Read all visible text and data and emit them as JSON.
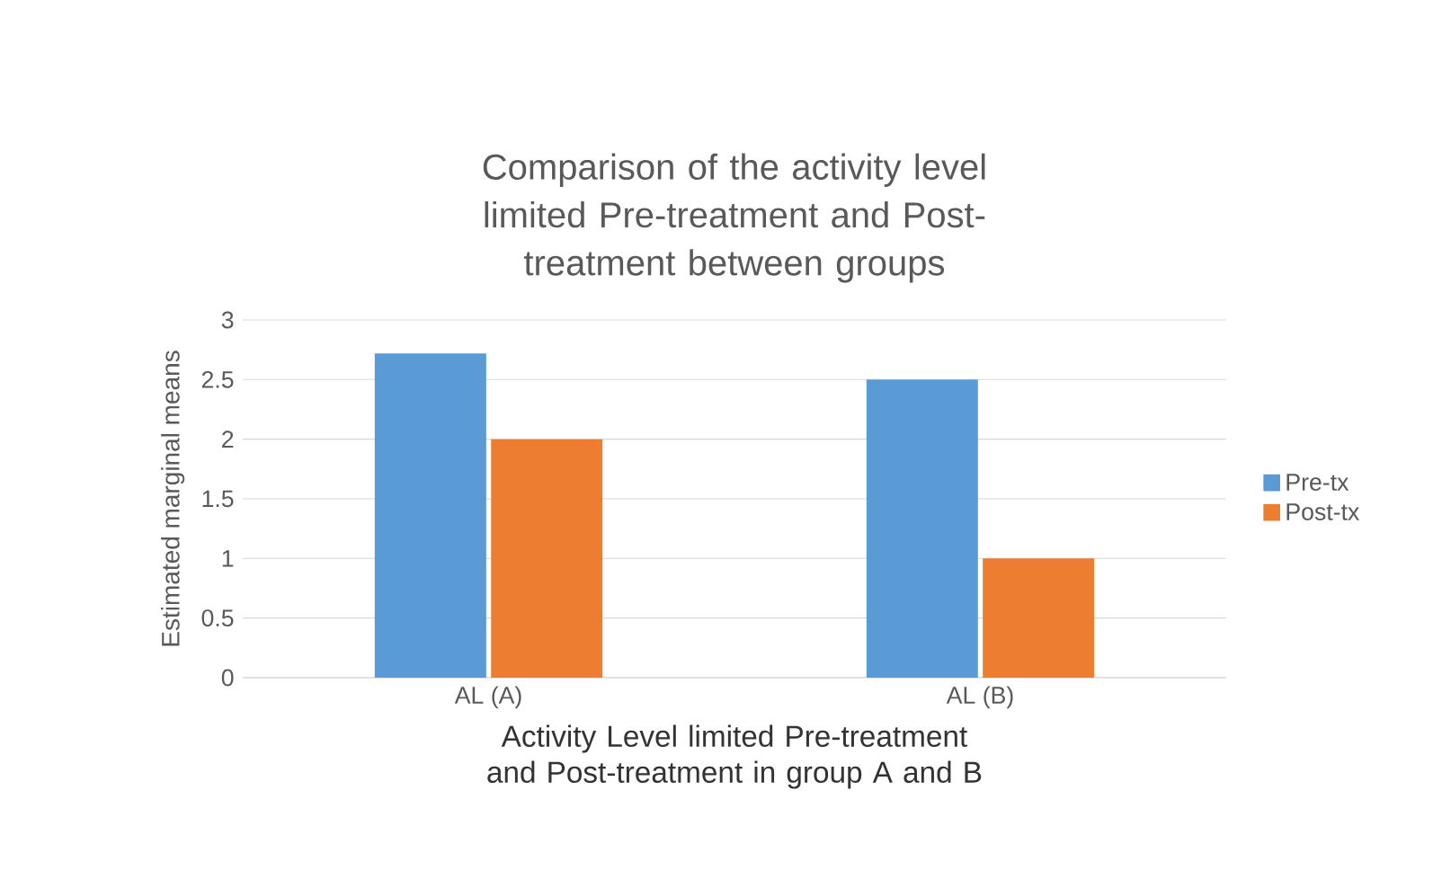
{
  "chart_data": {
    "type": "bar",
    "title": "Comparison of the activity level limited Pre-treatment and Post-treatment between groups",
    "xlabel": "Activity Level limited Pre-treatment and Post-treatment in group A and B",
    "ylabel": "Estimated marginal means",
    "categories": [
      "AL (A)",
      "AL (B)"
    ],
    "series": [
      {
        "name": "Pre-tx",
        "color": "#5b9bd5",
        "values": [
          2.72,
          2.5
        ]
      },
      {
        "name": "Post-tx",
        "color": "#ed7d31",
        "values": [
          2,
          1
        ]
      }
    ],
    "ylim": [
      0,
      3
    ],
    "yticks": [
      0,
      0.5,
      1,
      1.5,
      2,
      2.5,
      3
    ],
    "grid": "y",
    "legend": "right"
  }
}
